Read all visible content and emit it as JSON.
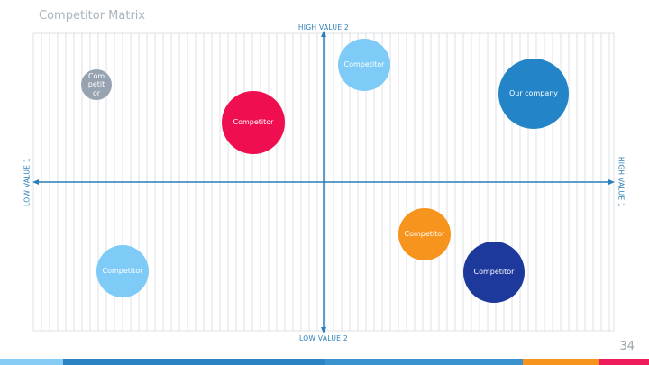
{
  "title": "Competitor Matrix",
  "axes": {
    "top": "HIGH VALUE 2",
    "bottom": "LOW VALUE 2",
    "left": "LOW VALUE 1",
    "right": "HIGH VALUE 1"
  },
  "bubbles": [
    {
      "label": "Competitor"
    },
    {
      "label": "Competitor"
    },
    {
      "label": "Competitor"
    },
    {
      "label": "Our company"
    },
    {
      "label": "Competitor"
    },
    {
      "label": "Competitor"
    },
    {
      "label": "Competitor"
    }
  ],
  "page_number": "34"
}
